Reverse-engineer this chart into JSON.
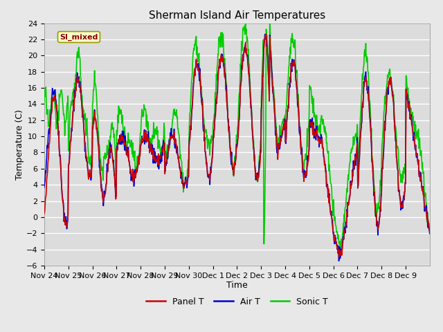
{
  "title": "Sherman Island Air Temperatures",
  "xlabel": "Time",
  "ylabel": "Temperature (C)",
  "ylim": [
    -6,
    24
  ],
  "yticks": [
    -6,
    -4,
    -2,
    0,
    2,
    4,
    6,
    8,
    10,
    12,
    14,
    16,
    18,
    20,
    22,
    24
  ],
  "date_labels": [
    "Nov 24",
    "Nov 25",
    "Nov 26",
    "Nov 27",
    "Nov 28",
    "Nov 29",
    "Nov 30",
    "Dec 1",
    "Dec 2",
    "Dec 3",
    "Dec 4",
    "Dec 5",
    "Dec 6",
    "Dec 7",
    "Dec 8",
    "Dec 9"
  ],
  "panel_color": "#cc0000",
  "air_color": "#0000cc",
  "sonic_color": "#00cc00",
  "legend_labels": [
    "Panel T",
    "Air T",
    "Sonic T"
  ],
  "annotation_text": "SI_mixed",
  "fig_bg_color": "#e8e8e8",
  "plot_bg_color": "#dcdcdc",
  "grid_color": "#ffffff",
  "title_fontsize": 11,
  "axis_fontsize": 9,
  "tick_fontsize": 8,
  "legend_fontsize": 9,
  "annot_fontsize": 8
}
